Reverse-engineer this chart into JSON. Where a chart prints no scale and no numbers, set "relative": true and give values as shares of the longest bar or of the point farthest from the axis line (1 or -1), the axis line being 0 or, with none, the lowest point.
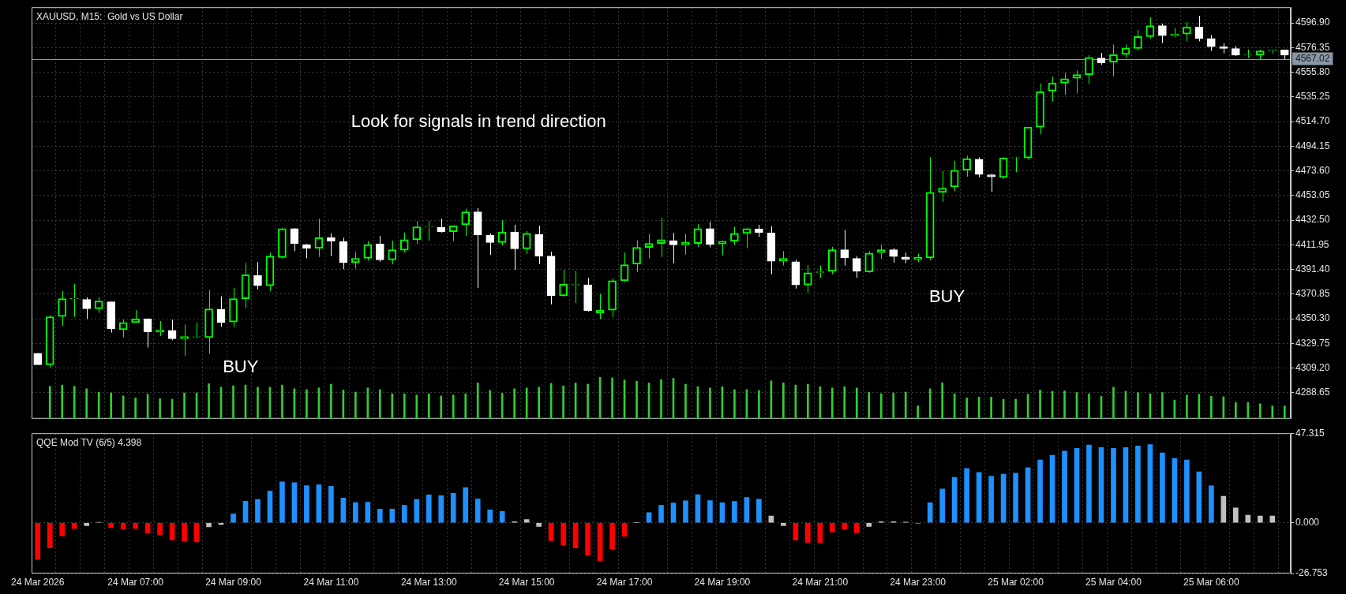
{
  "chart_data": [
    {
      "type": "candlestick",
      "title": "XAUUSD, M15:  Gold vs US Dollar",
      "grid": true,
      "tick_labels": "y",
      "colors": [
        "#ffffff",
        "#00ff00",
        "#00ff00",
        "#00ff00",
        "#ffffff",
        "#00ff00",
        "#ffffff",
        "#00ff00",
        "#00ff00",
        "#ffffff",
        "#00ff00",
        "#ffffff",
        "#00ff00",
        "#00ff00",
        "#00ff00",
        "#ffffff",
        "#00ff00",
        "#00ff00",
        "#ffffff",
        "#00ff00",
        "#00ff00",
        "#ffffff",
        "#ffffff",
        "#00ff00",
        "#ffffff",
        "#ffffff",
        "#00ff00",
        "#00ff00",
        "#ffffff",
        "#00ff00",
        "#00ff00",
        "#00ff00",
        "#00ff00",
        "#ffffff",
        "#00ff00",
        "#00ff00",
        "#ffffff",
        "#ffffff",
        "#00ff00",
        "#ffffff",
        "#00ff00",
        "#ffffff",
        "#ffffff",
        "#00ff00",
        "#00ff00",
        "#ffffff",
        "#00ff00",
        "#00ff00",
        "#00ff00",
        "#00ff00",
        "#00ff00",
        "#00ff00",
        "#ffffff",
        "#00ff00",
        "#00ff00",
        "#ffffff",
        "#00ff00",
        "#00ff00",
        "#00ff00",
        "#ffffff",
        "#ffffff",
        "#00ff00",
        "#ffffff",
        "#00ff00",
        "#00ff00",
        "#00ff00",
        "#ffffff",
        "#ffffff",
        "#00ff00",
        "#00ff00",
        "#ffffff",
        "#ffffff",
        "#00ff00",
        "#00ff00",
        "#00ff00",
        "#00ff00",
        "#00ff00",
        "#ffffff",
        "#ffffff",
        "#00ff00",
        "#00ff00",
        "#00ff00",
        "#00ff00",
        "#00ff00",
        "#00ff00",
        "#00ff00",
        "#00ff00",
        "#ffffff",
        "#00ff00",
        "#00ff00",
        "#00ff00",
        "#00ff00",
        "#ffffff",
        "#00ff00",
        "#00ff00",
        "#ffffff",
        "#ffffff",
        "#ffffff",
        "#ffffff",
        "#00ff00",
        "#00ff00",
        "#00ff00",
        "#ffffff"
      ],
      "categories": [
        null,
        null,
        null,
        null,
        null,
        null,
        null,
        null,
        null,
        null,
        null,
        null,
        null,
        null,
        null,
        null,
        null,
        null,
        null,
        null,
        null,
        null,
        null,
        null,
        null,
        null,
        null,
        null,
        null,
        null,
        null,
        null,
        null,
        null,
        null,
        null,
        null,
        null,
        null,
        null,
        null,
        null,
        null,
        null,
        null,
        null,
        null,
        null,
        null,
        null,
        null,
        null,
        null,
        null,
        null,
        null,
        null,
        null,
        null,
        null,
        null,
        null,
        null,
        null,
        null,
        null,
        null,
        null,
        null,
        null,
        null,
        null,
        null,
        null,
        null,
        null,
        null,
        null,
        null,
        null,
        null,
        null,
        null,
        null,
        null,
        null,
        null,
        null,
        null,
        null,
        null,
        null,
        null,
        null,
        null,
        null,
        null,
        null,
        null,
        null,
        null,
        null,
        null
      ],
      "ohlc": [
        [
          4321.6,
          4321.6,
          4312.0,
          4312.0
        ],
        [
          4312.0,
          4353.4,
          4309.6,
          4352.0
        ],
        [
          4352.2,
          4373.6,
          4344.3,
          4367.1
        ],
        [
          4366.9,
          4379.6,
          4352.0,
          4367.3
        ],
        [
          4366.4,
          4368.3,
          4350.3,
          4358.7
        ],
        [
          4358.7,
          4368.3,
          4355.1,
          4365.2
        ],
        [
          4364.5,
          4364.5,
          4338.8,
          4341.9
        ],
        [
          4341.2,
          4349.6,
          4334.7,
          4347.2
        ],
        [
          4347.2,
          4357.5,
          4347.2,
          4350.1
        ],
        [
          4350.1,
          4350.6,
          4326.4,
          4339.5
        ],
        [
          4339.3,
          4348.4,
          4335.9,
          4341.2
        ],
        [
          4340.7,
          4349.6,
          4332.4,
          4333.6
        ],
        [
          4333.6,
          4345.5,
          4319.6,
          4335.5
        ],
        [
          4335.0,
          4347.2,
          4334.0,
          4335.3
        ],
        [
          4334.7,
          4374.3,
          4321.1,
          4358.5
        ],
        [
          4358.2,
          4369.0,
          4343.6,
          4347.2
        ],
        [
          4347.7,
          4376.2,
          4343.1,
          4367.1
        ],
        [
          4367.1,
          4396.8,
          4359.2,
          4387.0
        ],
        [
          4386.3,
          4397.6,
          4374.8,
          4377.9
        ],
        [
          4377.9,
          4405.5,
          4373.6,
          4402.6
        ],
        [
          4401.4,
          4425.8,
          4400.7,
          4425.4
        ],
        [
          4425.4,
          4425.8,
          4406.7,
          4413.1
        ],
        [
          4412.2,
          4412.7,
          4400.7,
          4409.1
        ],
        [
          4409.1,
          4433.7,
          4401.9,
          4417.9
        ],
        [
          4417.9,
          4421.5,
          4402.6,
          4415.0
        ],
        [
          4414.6,
          4417.9,
          4391.6,
          4397.1
        ],
        [
          4397.1,
          4406.0,
          4392.3,
          4400.7
        ],
        [
          4400.7,
          4415.0,
          4398.8,
          4412.2
        ],
        [
          4412.7,
          4419.4,
          4397.8,
          4399.5
        ],
        [
          4399.5,
          4415.5,
          4395.9,
          4407.9
        ],
        [
          4407.4,
          4422.2,
          4405.5,
          4416.2
        ],
        [
          4416.2,
          4431.8,
          4412.7,
          4427.0
        ],
        [
          4427.0,
          4431.8,
          4415.5,
          4427.2
        ],
        [
          4426.6,
          4433.7,
          4422.2,
          4423.0
        ],
        [
          4423.0,
          4428.2,
          4415.0,
          4427.8
        ],
        [
          4428.7,
          4442.1,
          4419.4,
          4439.5
        ],
        [
          4439.5,
          4442.6,
          4376.0,
          4420.3
        ],
        [
          4419.8,
          4421.5,
          4403.5,
          4413.9
        ],
        [
          4413.9,
          4432.5,
          4411.5,
          4422.7
        ],
        [
          4422.7,
          4428.7,
          4391.1,
          4408.6
        ],
        [
          4408.6,
          4423.4,
          4404.3,
          4421.5
        ],
        [
          4420.6,
          4427.8,
          4395.9,
          4402.6
        ],
        [
          4402.6,
          4406.2,
          4362.3,
          4369.5
        ],
        [
          4369.5,
          4391.1,
          4369.0,
          4379.1
        ],
        [
          4378.6,
          4390.4,
          4363.5,
          4378.9
        ],
        [
          4378.6,
          4384.4,
          4356.3,
          4357.0
        ],
        [
          4355.1,
          4371.2,
          4350.3,
          4357.5
        ],
        [
          4357.5,
          4383.9,
          4351.5,
          4382.0
        ],
        [
          4382.0,
          4405.5,
          4381.0,
          4395.4
        ],
        [
          4395.9,
          4415.8,
          4389.2,
          4409.8
        ],
        [
          4409.8,
          4421.0,
          4400.7,
          4413.1
        ],
        [
          4413.1,
          4434.7,
          4401.9,
          4416.2
        ],
        [
          4415.5,
          4421.8,
          4396.6,
          4411.9
        ],
        [
          4411.9,
          4421.0,
          4403.8,
          4413.9
        ],
        [
          4413.1,
          4429.4,
          4410.3,
          4425.4
        ],
        [
          4425.4,
          4431.3,
          4409.8,
          4412.2
        ],
        [
          4412.7,
          4415.5,
          4403.1,
          4415.0
        ],
        [
          4415.0,
          4427.0,
          4412.2,
          4421.5
        ],
        [
          4421.5,
          4425.8,
          4409.1,
          4425.4
        ],
        [
          4425.1,
          4428.7,
          4418.6,
          4422.2
        ],
        [
          4421.8,
          4427.5,
          4387.5,
          4398.3
        ],
        [
          4398.3,
          4406.7,
          4394.7,
          4400.7
        ],
        [
          4397.8,
          4399.5,
          4375.5,
          4378.6
        ],
        [
          4378.6,
          4395.2,
          4371.9,
          4388.7
        ],
        [
          4388.9,
          4394.7,
          4384.4,
          4389.4
        ],
        [
          4389.9,
          4410.3,
          4387.5,
          4407.9
        ],
        [
          4407.9,
          4424.2,
          4394.7,
          4401.1
        ],
        [
          4400.7,
          4402.6,
          4384.4,
          4389.9
        ],
        [
          4389.4,
          4406.7,
          4388.7,
          4405.0
        ],
        [
          4405.5,
          4411.9,
          4400.2,
          4407.9
        ],
        [
          4407.9,
          4409.1,
          4397.1,
          4402.3
        ],
        [
          4401.8,
          4405.4,
          4396.7,
          4399.9
        ],
        [
          4399.9,
          4404.7,
          4397.5,
          4401.5
        ],
        [
          4401.1,
          4484.9,
          4399.1,
          4455.7
        ],
        [
          4455.7,
          4473.5,
          4447.8,
          4459.1
        ],
        [
          4460.3,
          4482.1,
          4456.9,
          4474.2
        ],
        [
          4474.2,
          4486.2,
          4468.7,
          4483.8
        ],
        [
          4483.3,
          4484.9,
          4468.2,
          4470.6
        ],
        [
          4470.3,
          4471.1,
          4456.2,
          4468.7
        ],
        [
          4468.2,
          4484.9,
          4467.0,
          4484.5
        ],
        [
          4484.5,
          4485.3,
          4472.5,
          4484.7
        ],
        [
          4484.5,
          4510.3,
          4483.0,
          4510.1
        ],
        [
          4510.1,
          4546.6,
          4504.1,
          4539.6
        ],
        [
          4540.1,
          4552.1,
          4531.7,
          4546.8
        ],
        [
          4546.8,
          4555.2,
          4537.0,
          4550.4
        ],
        [
          4550.9,
          4557.3,
          4538.2,
          4553.8
        ],
        [
          4553.8,
          4570.1,
          4546.1,
          4568.1
        ],
        [
          4567.7,
          4572.0,
          4562.1,
          4563.6
        ],
        [
          4564.1,
          4578.9,
          4552.6,
          4570.5
        ],
        [
          4570.8,
          4578.9,
          4567.7,
          4576.0
        ],
        [
          4575.6,
          4591.1,
          4574.1,
          4585.6
        ],
        [
          4585.6,
          4601.7,
          4584.0,
          4594.7
        ],
        [
          4594.7,
          4596.4,
          4580.1,
          4586.4
        ],
        [
          4586.4,
          4592.8,
          4584.9,
          4587.6
        ],
        [
          4587.6,
          4597.6,
          4581.6,
          4593.5
        ],
        [
          4593.5,
          4602.9,
          4581.6,
          4584.0
        ],
        [
          4584.0,
          4586.8,
          4573.6,
          4577.2
        ],
        [
          4577.0,
          4580.1,
          4571.7,
          4575.6
        ],
        [
          4575.6,
          4577.7,
          4569.3,
          4570.1
        ],
        [
          4570.1,
          4574.8,
          4567.7,
          4570.3
        ],
        [
          4570.1,
          4574.8,
          4566.0,
          4573.6
        ],
        [
          4574.2,
          4574.8,
          4571.3,
          4574.4
        ],
        [
          4574.4,
          4574.6,
          4566.5,
          4570.1
        ]
      ],
      "ylim": [
        4267,
        4610
      ],
      "yticks": [
        {
          "value": 4288.65,
          "label": "4288.65"
        },
        {
          "value": 4309.2,
          "label": "4309.20"
        },
        {
          "value": 4329.75,
          "label": "4329.75"
        },
        {
          "value": 4350.3,
          "label": "4350.30"
        },
        {
          "value": 4370.85,
          "label": "4370.85"
        },
        {
          "value": 4391.4,
          "label": "4391.40"
        },
        {
          "value": 4411.95,
          "label": "4411.95"
        },
        {
          "value": 4432.5,
          "label": "4432.50"
        },
        {
          "value": 4453.05,
          "label": "4453.05"
        },
        {
          "value": 4473.6,
          "label": "4473.60"
        },
        {
          "value": 4494.15,
          "label": "4494.15"
        },
        {
          "value": 4514.7,
          "label": "4514.70"
        },
        {
          "value": 4535.25,
          "label": "4535.25"
        },
        {
          "value": 4555.8,
          "label": "4555.80"
        },
        {
          "value": 4576.35,
          "label": "4576.35"
        },
        {
          "value": 4596.9,
          "label": "4596.90"
        }
      ],
      "ref_lines": [
        {
          "axis": "y",
          "value": 4567.02,
          "label": "4567.02",
          "color": "#8a97a6"
        }
      ],
      "annotations": [
        "Look for signals in trend direction",
        "BUY",
        "BUY"
      ]
    },
    {
      "type": "bar",
      "relative": true,
      "color": "#32cd32",
      "tick_labels": false,
      "categories": [
        null,
        null,
        null,
        null,
        null,
        null,
        null,
        null,
        null,
        null,
        null,
        null,
        null,
        null,
        null,
        null,
        null,
        null,
        null,
        null,
        null,
        null,
        null,
        null,
        null,
        null,
        null,
        null,
        null,
        null,
        null,
        null,
        null,
        null,
        null,
        null,
        null,
        null,
        null,
        null,
        null,
        null,
        null,
        null,
        null,
        null,
        null,
        null,
        null,
        null,
        null,
        null,
        null,
        null,
        null,
        null,
        null,
        null,
        null,
        null,
        null,
        null,
        null,
        null,
        null,
        null,
        null,
        null,
        null,
        null,
        null,
        null,
        null,
        null,
        null,
        null,
        null,
        null,
        null,
        null,
        null,
        null,
        null,
        null,
        null,
        null,
        null,
        null,
        null,
        null,
        null,
        null,
        null,
        null,
        null,
        null,
        null,
        null,
        null,
        null,
        null,
        null,
        null
      ],
      "values": [
        null,
        0.78,
        0.81,
        0.78,
        0.72,
        0.64,
        0.62,
        0.55,
        0.5,
        0.59,
        0.48,
        0.47,
        0.62,
        0.62,
        0.84,
        0.76,
        0.79,
        0.81,
        0.76,
        0.76,
        0.81,
        0.72,
        0.7,
        0.74,
        0.83,
        0.69,
        0.64,
        0.74,
        0.7,
        0.6,
        0.6,
        0.57,
        0.6,
        0.55,
        0.57,
        0.6,
        0.86,
        0.68,
        0.61,
        0.72,
        0.74,
        0.76,
        0.85,
        0.79,
        0.86,
        0.83,
        1,
        0.98,
        0.93,
        0.9,
        0.86,
        0.94,
        0.97,
        0.83,
        0.77,
        0.74,
        0.77,
        0.7,
        0.7,
        0.68,
        0.91,
        0.86,
        0.81,
        0.83,
        0.77,
        0.74,
        0.77,
        0.74,
        0.64,
        0.6,
        0.62,
        0.64,
        0.31,
        0.72,
        0.86,
        0.6,
        0.5,
        0.52,
        0.52,
        0.47,
        0.47,
        0.59,
        0.69,
        0.66,
        0.67,
        0.63,
        0.6,
        0.54,
        0.76,
        0.66,
        0.63,
        0.6,
        0.63,
        0.45,
        0.57,
        0.59,
        0.54,
        0.53,
        0.39,
        0.39,
        0.36,
        0.31,
        0.31
      ]
    },
    {
      "type": "bar",
      "title": "QQE Mod TV (6/5) 4.398",
      "grid": true,
      "categories": [
        "24 Mar 2026",
        null,
        null,
        null,
        null,
        null,
        null,
        null,
        "24 Mar 07:00",
        null,
        null,
        null,
        null,
        null,
        null,
        null,
        "24 Mar 09:00",
        null,
        null,
        null,
        null,
        null,
        null,
        null,
        "24 Mar 11:00",
        null,
        null,
        null,
        null,
        null,
        null,
        null,
        "24 Mar 13:00",
        null,
        null,
        null,
        null,
        null,
        null,
        null,
        "24 Mar 15:00",
        null,
        null,
        null,
        null,
        null,
        null,
        null,
        "24 Mar 17:00",
        null,
        null,
        null,
        null,
        null,
        null,
        null,
        "24 Mar 19:00",
        null,
        null,
        null,
        null,
        null,
        null,
        null,
        "24 Mar 21:00",
        null,
        null,
        null,
        null,
        null,
        null,
        null,
        "24 Mar 23:00",
        null,
        null,
        null,
        null,
        null,
        null,
        null,
        "25 Mar 02:00",
        null,
        null,
        null,
        null,
        null,
        null,
        null,
        "25 Mar 04:00",
        null,
        null,
        null,
        null,
        null,
        null,
        null,
        "25 Mar 06:00",
        null,
        null,
        null,
        null,
        null,
        null
      ],
      "values": [
        -19.3,
        -13.3,
        -6.9,
        -3.0,
        -1.5,
        0.3,
        -2.6,
        -3.4,
        -3.0,
        -5.4,
        -6.2,
        -9.0,
        -9.6,
        -10.1,
        -2.1,
        -0.9,
        4.7,
        11.4,
        12.4,
        16.7,
        21.6,
        21.2,
        19.7,
        20.1,
        19.3,
        13.1,
        10.7,
        10.9,
        7.3,
        7.3,
        9.2,
        12.4,
        14.8,
        14.4,
        15.6,
        18.6,
        12.6,
        6.9,
        6.0,
        0.6,
        1.7,
        -1.9,
        -9.4,
        -11.8,
        -13.3,
        -17.1,
        -19.9,
        -13.9,
        -7.1,
        0.2,
        5.4,
        9.2,
        10.5,
        11.6,
        14.9,
        11.7,
        10.6,
        11.3,
        13.4,
        12.5,
        3.6,
        -1.5,
        -9.1,
        -10.4,
        -10.4,
        -4.9,
        -3.4,
        -5.3,
        -1.9,
        0.6,
        0.6,
        0.4,
        -0.2,
        10.6,
        17.9,
        24.0,
        28.7,
        26.6,
        24.7,
        25.7,
        26.2,
        29.1,
        33.2,
        35.7,
        37.9,
        39.3,
        41.1,
        39.8,
        39.3,
        39.8,
        40.6,
        41.3,
        37.0,
        34.0,
        33.2,
        27.0,
        19.6,
        14.0,
        7.9,
        4.0,
        3.6,
        3.6,
        null
      ],
      "colors": [
        "#ff0000",
        "#ff0000",
        "#ff0000",
        "#ff0000",
        "#c0c0c0",
        "#c0c0c0",
        "#ff0000",
        "#ff0000",
        "#ff0000",
        "#ff0000",
        "#ff0000",
        "#ff0000",
        "#ff0000",
        "#ff0000",
        "#c0c0c0",
        "#c0c0c0",
        "#1e90ff",
        "#1e90ff",
        "#1e90ff",
        "#1e90ff",
        "#1e90ff",
        "#1e90ff",
        "#1e90ff",
        "#1e90ff",
        "#1e90ff",
        "#1e90ff",
        "#1e90ff",
        "#1e90ff",
        "#1e90ff",
        "#1e90ff",
        "#1e90ff",
        "#1e90ff",
        "#1e90ff",
        "#1e90ff",
        "#1e90ff",
        "#1e90ff",
        "#1e90ff",
        "#1e90ff",
        "#1e90ff",
        "#c0c0c0",
        "#c0c0c0",
        "#c0c0c0",
        "#ff0000",
        "#ff0000",
        "#ff0000",
        "#ff0000",
        "#ff0000",
        "#ff0000",
        "#ff0000",
        "#c0c0c0",
        "#1e90ff",
        "#1e90ff",
        "#1e90ff",
        "#1e90ff",
        "#1e90ff",
        "#1e90ff",
        "#1e90ff",
        "#1e90ff",
        "#1e90ff",
        "#1e90ff",
        "#c0c0c0",
        "#c0c0c0",
        "#ff0000",
        "#ff0000",
        "#ff0000",
        "#ff0000",
        "#ff0000",
        "#ff0000",
        "#c0c0c0",
        "#c0c0c0",
        "#c0c0c0",
        "#c0c0c0",
        "#c0c0c0",
        "#1e90ff",
        "#1e90ff",
        "#1e90ff",
        "#1e90ff",
        "#1e90ff",
        "#1e90ff",
        "#1e90ff",
        "#1e90ff",
        "#1e90ff",
        "#1e90ff",
        "#1e90ff",
        "#1e90ff",
        "#1e90ff",
        "#1e90ff",
        "#1e90ff",
        "#1e90ff",
        "#1e90ff",
        "#1e90ff",
        "#1e90ff",
        "#1e90ff",
        "#1e90ff",
        "#1e90ff",
        "#1e90ff",
        "#1e90ff",
        "#c0c0c0",
        "#c0c0c0",
        "#c0c0c0",
        "#c0c0c0",
        "#c0c0c0",
        "#c0c0c0"
      ],
      "ylim": [
        -26.753,
        47.315
      ],
      "yticks": [
        {
          "value": -26.753,
          "label": "-26.753"
        },
        {
          "value": 0,
          "label": "0.000"
        },
        {
          "value": 47.315,
          "label": "47.315"
        }
      ]
    }
  ]
}
